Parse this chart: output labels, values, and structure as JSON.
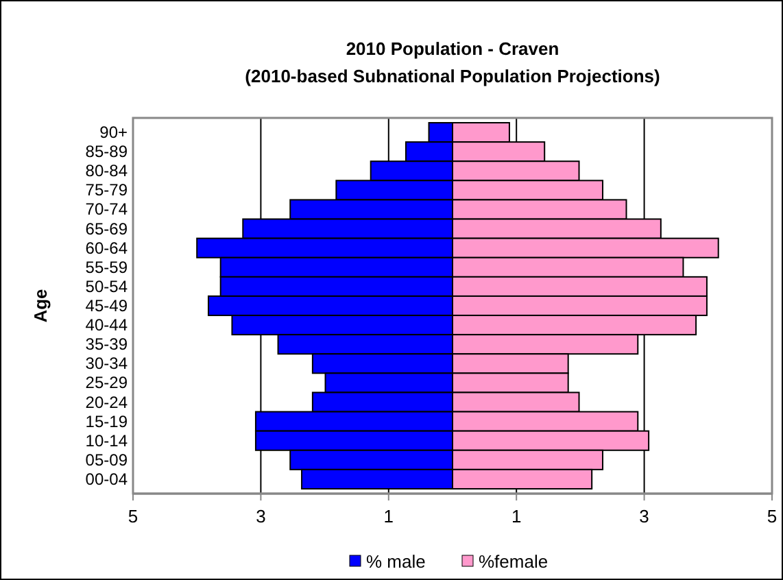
{
  "chart_data": {
    "type": "bar",
    "orientation": "horizontal",
    "title": "2010 Population - Craven",
    "subtitle": "(2010-based Subnational Population Projections)",
    "ylabel": "Age",
    "categories": [
      "90+",
      "85-89",
      "80-84",
      "75-79",
      "70-74",
      "65-69",
      "60-64",
      "55-59",
      "50-54",
      "45-49",
      "40-44",
      "35-39",
      "30-34",
      "25-29",
      "20-24",
      "15-19",
      "10-14",
      "05-09",
      "00-04"
    ],
    "series": [
      {
        "name": "% male",
        "color": "#0000ff",
        "values": [
          -0.37,
          -0.73,
          -1.28,
          -1.82,
          -2.54,
          -3.28,
          -4.0,
          -3.63,
          -3.63,
          -3.82,
          -3.45,
          -2.73,
          -2.19,
          -1.99,
          -2.19,
          -3.08,
          -3.08,
          -2.54,
          -2.36
        ]
      },
      {
        "name": "%female",
        "color": "#ff99cc",
        "values": [
          0.89,
          1.44,
          1.98,
          2.35,
          2.72,
          3.26,
          4.16,
          3.61,
          3.98,
          3.98,
          3.81,
          2.9,
          1.81,
          1.81,
          1.98,
          2.9,
          3.07,
          2.35,
          2.18
        ]
      }
    ],
    "xlim": [
      -5,
      5
    ],
    "xticks": [
      {
        "value": -5,
        "label": "5"
      },
      {
        "value": -3,
        "label": "3"
      },
      {
        "value": -1,
        "label": "1"
      },
      1,
      3,
      5
    ],
    "stacked": true,
    "grid": "x",
    "legend": "bottom"
  }
}
